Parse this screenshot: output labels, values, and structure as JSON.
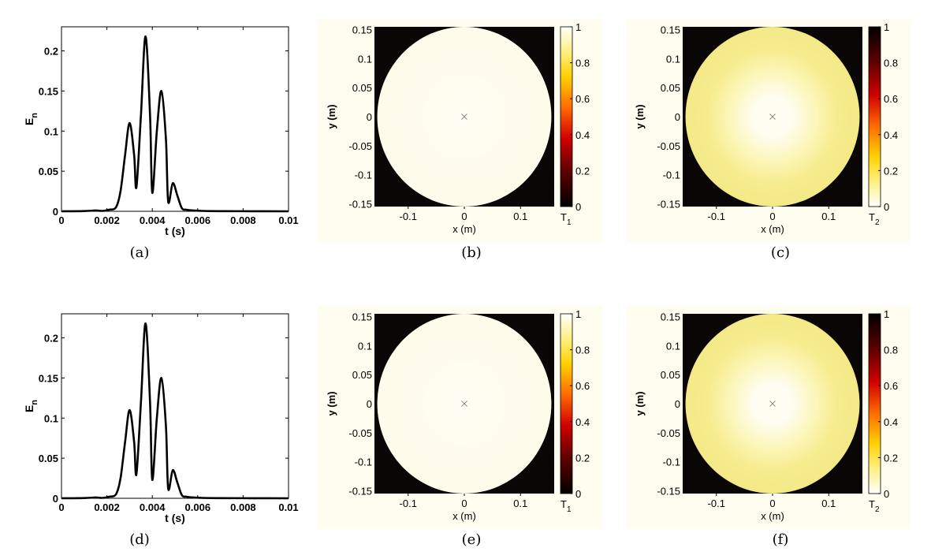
{
  "figure": {
    "panels": [
      {
        "caption": "(a)"
      },
      {
        "caption": "(b)"
      },
      {
        "caption": "(c)"
      },
      {
        "caption": "(d)"
      },
      {
        "caption": "(e)"
      },
      {
        "caption": "(f)"
      }
    ]
  },
  "chart_data": [
    {
      "panel": "(a)",
      "type": "line",
      "xlabel": "t (s)",
      "ylabel": "E",
      "ylabel_sub": "n",
      "xlim": [
        0,
        0.01
      ],
      "ylim": [
        0,
        0.23
      ],
      "xticks": [
        "0",
        "0.002",
        "0.004",
        "0.006",
        "0.008",
        "0.01"
      ],
      "yticks": [
        "0",
        "0.05",
        "0.1",
        "0.15",
        "0.2"
      ],
      "line_color": "#000000",
      "x": [
        0,
        0.001,
        0.0015,
        0.0018,
        0.0021,
        0.0024,
        0.0026,
        0.0028,
        0.003,
        0.0032,
        0.0033,
        0.0035,
        0.0037,
        0.0039,
        0.004,
        0.0042,
        0.0044,
        0.0046,
        0.0047,
        0.0049,
        0.0051,
        0.0053,
        0.0055,
        0.0058,
        0.0062,
        0.007,
        0.0085,
        0.01
      ],
      "y": [
        0,
        0.0003,
        0.001,
        0.0005,
        0.002,
        0.005,
        0.025,
        0.07,
        0.11,
        0.07,
        0.03,
        0.12,
        0.218,
        0.12,
        0.023,
        0.1,
        0.15,
        0.09,
        0.012,
        0.035,
        0.02,
        0.004,
        0.002,
        0.001,
        0.0005,
        0.0002,
        0.0001,
        0
      ]
    },
    {
      "panel": "(b)",
      "type": "heatmap",
      "xlabel": "x (m)",
      "ylabel": "y (m)",
      "colorbar_label": "T",
      "colorbar_sub": "1",
      "colormap": "hot",
      "clim": [
        0,
        1
      ],
      "xlim": [
        -0.16,
        0.16
      ],
      "ylim": [
        -0.155,
        0.155
      ],
      "xticks": [
        "-0.1",
        "0",
        "0.1"
      ],
      "yticks": [
        "0.15",
        "0.1",
        "0.05",
        "0",
        "-0.05",
        "-0.1",
        "-0.15"
      ],
      "cticks": [
        "1",
        "0.8",
        "0.6",
        "0.4",
        "0.2",
        "0"
      ],
      "disk_radius": 0.155,
      "center_value": 0.98,
      "edge_value": 0.98,
      "marker": "x"
    },
    {
      "panel": "(c)",
      "type": "heatmap",
      "xlabel": "x (m)",
      "ylabel": "y (m)",
      "colorbar_label": "T",
      "colorbar_sub": "2",
      "colormap": "hot-reversed",
      "clim": [
        0,
        1
      ],
      "xlim": [
        -0.16,
        0.16
      ],
      "ylim": [
        -0.155,
        0.155
      ],
      "xticks": [
        "-0.1",
        "0",
        "0.1"
      ],
      "yticks": [
        "0.15",
        "0.1",
        "0.05",
        "0",
        "-0.05",
        "-0.1",
        "-0.15"
      ],
      "cticks": [
        "1",
        "0.8",
        "0.6",
        "0.4",
        "0.2",
        "0"
      ],
      "disk_radius": 0.155,
      "center_value": 0.02,
      "edge_value": 0.15,
      "marker": "x"
    },
    {
      "panel": "(d)",
      "type": "line",
      "xlabel": "t (s)",
      "ylabel": "E",
      "ylabel_sub": "n",
      "xlim": [
        0,
        0.01
      ],
      "ylim": [
        0,
        0.23
      ],
      "xticks": [
        "0",
        "0.002",
        "0.004",
        "0.006",
        "0.008",
        "0.01"
      ],
      "yticks": [
        "0",
        "0.05",
        "0.1",
        "0.15",
        "0.2"
      ],
      "line_color": "#000000",
      "x": [
        0,
        0.001,
        0.0015,
        0.0018,
        0.0021,
        0.0024,
        0.0026,
        0.0028,
        0.003,
        0.0032,
        0.0033,
        0.0035,
        0.0037,
        0.0039,
        0.004,
        0.0042,
        0.0044,
        0.0046,
        0.0047,
        0.0049,
        0.0051,
        0.0053,
        0.0055,
        0.0058,
        0.0062,
        0.007,
        0.0085,
        0.01
      ],
      "y": [
        0,
        0.0003,
        0.001,
        0.0005,
        0.002,
        0.005,
        0.025,
        0.07,
        0.11,
        0.07,
        0.03,
        0.12,
        0.218,
        0.12,
        0.023,
        0.1,
        0.15,
        0.09,
        0.012,
        0.035,
        0.02,
        0.004,
        0.002,
        0.001,
        0.0005,
        0.0002,
        0.0001,
        0
      ]
    },
    {
      "panel": "(e)",
      "type": "heatmap",
      "xlabel": "x (m)",
      "ylabel": "y (m)",
      "colorbar_label": "T",
      "colorbar_sub": "1",
      "colormap": "hot",
      "clim": [
        0,
        1
      ],
      "xlim": [
        -0.16,
        0.16
      ],
      "ylim": [
        -0.155,
        0.155
      ],
      "xticks": [
        "-0.1",
        "0",
        "0.1"
      ],
      "yticks": [
        "0.15",
        "0.1",
        "0.05",
        "0",
        "-0.05",
        "-0.1",
        "-0.15"
      ],
      "cticks": [
        "1",
        "0.8",
        "0.6",
        "0.4",
        "0.2",
        "0"
      ],
      "disk_radius": 0.155,
      "center_value": 0.98,
      "edge_value": 0.98,
      "marker": "x"
    },
    {
      "panel": "(f)",
      "type": "heatmap",
      "xlabel": "x (m)",
      "ylabel": "y (m)",
      "colorbar_label": "T",
      "colorbar_sub": "2",
      "colormap": "hot-reversed",
      "clim": [
        0,
        1
      ],
      "xlim": [
        -0.16,
        0.16
      ],
      "ylim": [
        -0.155,
        0.155
      ],
      "xticks": [
        "-0.1",
        "0",
        "0.1"
      ],
      "yticks": [
        "0.15",
        "0.1",
        "0.05",
        "0",
        "-0.05",
        "-0.1",
        "-0.15"
      ],
      "cticks": [
        "1",
        "0.8",
        "0.6",
        "0.4",
        "0.2",
        "0"
      ],
      "disk_radius": 0.155,
      "center_value": 0.02,
      "edge_value": 0.15,
      "marker": "x"
    }
  ]
}
